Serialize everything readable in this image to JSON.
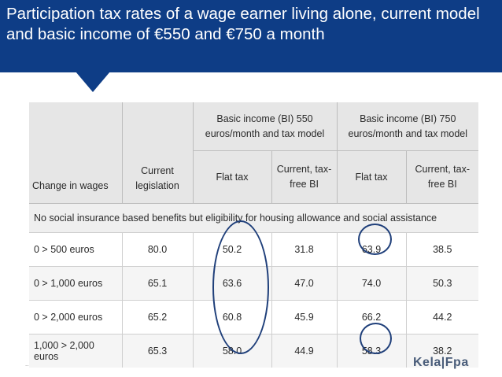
{
  "header": {
    "title": "Participation tax rates of a wage earner living alone, current model and basic income of €550 and €750 a month"
  },
  "table": {
    "group_headers": {
      "bi550": "Basic income (BI) 550 euros/month and tax model",
      "bi750": "Basic income (BI) 750 euros/month and tax model"
    },
    "columns": {
      "change": "Change in wages",
      "current": "Current legislation",
      "flat550": "Flat tax",
      "taxfree550": "Current, tax-free BI",
      "flat750": "Flat tax",
      "taxfree750": "Current, tax-free BI"
    },
    "band_label": "No social insurance based benefits but eligibility for housing allowance and social assistance",
    "rows": [
      {
        "label": "0 > 500 euros",
        "current": "80.0",
        "flat550": "50.2",
        "taxfree550": "31.8",
        "flat750": "63.9",
        "taxfree750": "38.5"
      },
      {
        "label": "0 > 1,000 euros",
        "current": "65.1",
        "flat550": "63.6",
        "taxfree550": "47.0",
        "flat750": "74.0",
        "taxfree750": "50.3"
      },
      {
        "label": "0 > 2,000 euros",
        "current": "65.2",
        "flat550": "60.8",
        "taxfree550": "45.9",
        "flat750": "66.2",
        "taxfree750": "44.2"
      },
      {
        "label": "1,000 > 2,000 euros",
        "current": "65.3",
        "flat550": "58.0",
        "taxfree550": "44.9",
        "flat750": "58.3",
        "taxfree750": "38.2"
      }
    ]
  },
  "footer": {
    "dots": "..",
    "logo": "Kela|Fpa"
  },
  "colors": {
    "banner": "#0e3d86",
    "annotation": "#1f3f7a"
  }
}
